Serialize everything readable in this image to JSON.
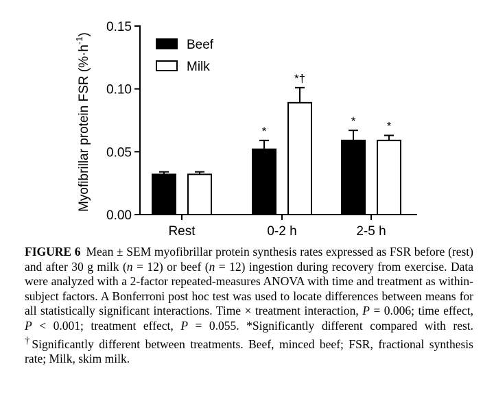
{
  "chart_data": {
    "type": "bar",
    "ylabel": "Myofibrillar protein FSR (%·h",
    "ylabel_sup": "-1",
    "ylabel_close": ")",
    "ylim": [
      0,
      0.15
    ],
    "yticks": [
      "0.00",
      "0.05",
      "0.10",
      "0.15"
    ],
    "categories": [
      "Rest",
      "0-2 h",
      "2-5 h"
    ],
    "series": [
      {
        "name": "Beef",
        "color": "#000000",
        "values": [
          0.032,
          0.052,
          0.059
        ],
        "sem": [
          0.002,
          0.007,
          0.008
        ],
        "marks": [
          "",
          "*",
          "*"
        ]
      },
      {
        "name": "Milk",
        "color": "#ffffff",
        "values": [
          0.032,
          0.089,
          0.059
        ],
        "sem": [
          0.002,
          0.012,
          0.004
        ],
        "marks": [
          "",
          "*†",
          "*"
        ]
      }
    ],
    "legend_position": "top-left"
  },
  "caption": {
    "label": "FIGURE 6",
    "t1": "Mean ± SEM myofibrillar protein synthesis rates expressed as FSR before (rest) and after 30 g milk (",
    "n1": "n",
    "t2": " = 12) or beef (",
    "n2": "n",
    "t3": " = 12) ingestion during recovery from exercise. Data were analyzed with a 2-factor repeated-measures ANOVA with time and treatment as within-subject factors. A Bonferroni post hoc test was used to locate differences between means for all statistically significant interactions. Time × treatment interaction, ",
    "p1": "P",
    "t4": " = 0.006; time effect, ",
    "p2": "P",
    "t5": " < 0.001; treatment effect, ",
    "p3": "P",
    "t6": " = 0.055. *Significantly different compared with rest. ",
    "dagger": "†",
    "t7": "Significantly different between treatments. Beef, minced beef; FSR, fractional synthesis rate; Milk, skim milk."
  }
}
